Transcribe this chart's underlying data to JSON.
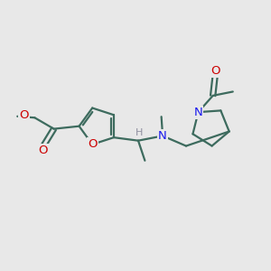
{
  "bg_color": "#e8e8e8",
  "bond_color": "#3d6b5e",
  "O_color": "#cc0000",
  "N_color": "#1a1aee",
  "H_color": "#9090a0",
  "line_width": 1.6,
  "font_size": 9.5,
  "fig_size": [
    3.0,
    3.0
  ],
  "dpi": 100,
  "xlim": [
    0,
    10
  ],
  "ylim": [
    0,
    10
  ]
}
